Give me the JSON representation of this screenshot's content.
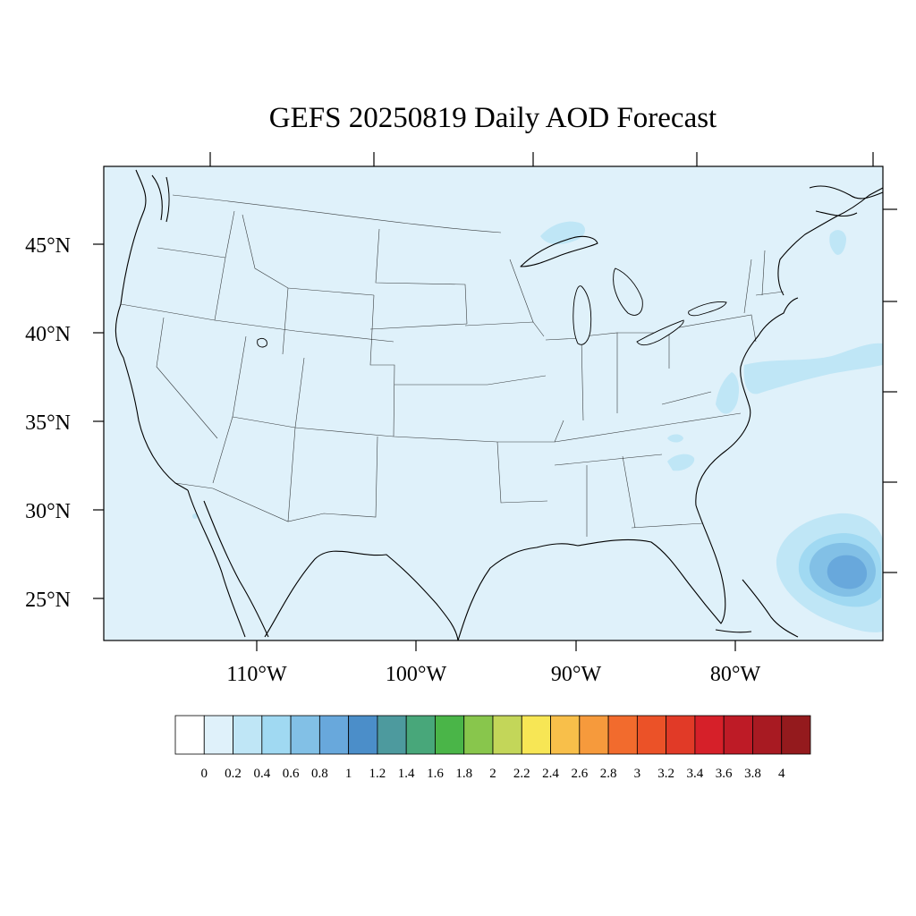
{
  "title": "GEFS 20250819 Daily AOD Forecast",
  "colors": {
    "background_aod": "#dff1fa",
    "frame": "#000000"
  },
  "map": {
    "lat_labels": [
      "45°N",
      "40°N",
      "35°N",
      "30°N",
      "25°N"
    ],
    "lon_labels": [
      "110°W",
      "100°W",
      "90°W",
      "80°W"
    ],
    "features": [
      "coastlines",
      "state-borders",
      "great-lakes"
    ],
    "aod_blobs": [
      {
        "region": "off-florida-bahamas",
        "levels": [
          0.2,
          0.4,
          0.6,
          0.8
        ]
      },
      {
        "region": "off-mid-atlantic",
        "levels": [
          0.2
        ]
      },
      {
        "region": "lake-superior",
        "levels": [
          0.2
        ]
      },
      {
        "region": "chesapeake",
        "levels": [
          0.2
        ]
      },
      {
        "region": "carolinas",
        "levels": [
          0.2
        ]
      },
      {
        "region": "new-brunswick",
        "levels": [
          0.2
        ]
      }
    ]
  },
  "colorbar": {
    "labels": [
      "0",
      "0.2",
      "0.4",
      "0.6",
      "0.8",
      "1",
      "1.2",
      "1.4",
      "1.6",
      "1.8",
      "2",
      "2.2",
      "2.4",
      "2.6",
      "2.8",
      "3",
      "3.2",
      "3.4",
      "3.6",
      "3.8",
      "4"
    ],
    "colors": [
      "#ffffff",
      "#dff1fa",
      "#bfe6f6",
      "#a0d9f2",
      "#82c0e6",
      "#68a8dc",
      "#4b8ec9",
      "#4d9a9e",
      "#48a77a",
      "#4ab548",
      "#88c64c",
      "#c3d659",
      "#f7e655",
      "#f8bf4a",
      "#f69a3c",
      "#f26b2d",
      "#eb5228",
      "#e13a27",
      "#d62029",
      "#be1b26",
      "#a81a22",
      "#941a1d"
    ]
  }
}
